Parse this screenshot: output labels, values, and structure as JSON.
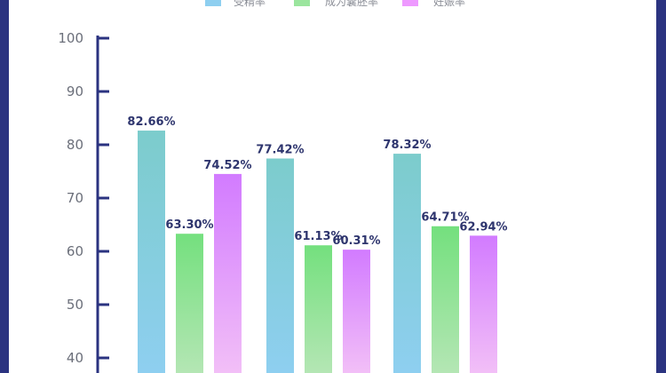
{
  "chart_data": {
    "type": "bar",
    "categories": [
      "",
      "",
      ""
    ],
    "series": [
      {
        "name": "受精率",
        "values": [
          82.66,
          77.42,
          78.32
        ],
        "labels": [
          "82.66%",
          "77.42%",
          "78.32%"
        ]
      },
      {
        "name": "成为囊胚率",
        "values": [
          63.3,
          61.13,
          64.71
        ],
        "labels": [
          "63.30%",
          "61.13%",
          "64.71%"
        ]
      },
      {
        "name": "妊娠率",
        "values": [
          74.52,
          60.31,
          62.94
        ],
        "labels": [
          "74.52%",
          "60.31%",
          "62.94%"
        ]
      }
    ],
    "yticks": [
      "40",
      "50",
      "60",
      "70",
      "80",
      "90",
      "100"
    ],
    "ylim": [
      35,
      100
    ],
    "grid": false,
    "legend": "top",
    "colors": {
      "series0": [
        "#7ccccc",
        "#8ecff0"
      ],
      "series1": [
        "#74e07e",
        "#b4e6b4"
      ],
      "series2": [
        "#d27bff",
        "#f2bff7"
      ],
      "axis": "#2b3380"
    }
  }
}
